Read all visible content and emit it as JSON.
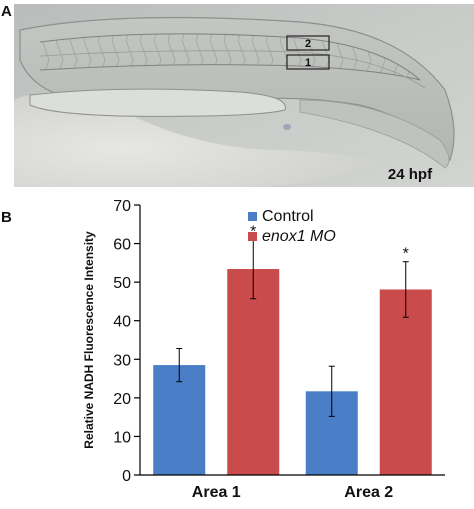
{
  "panel_a": {
    "label": "A",
    "timepoint": "24 hpf",
    "boxes": [
      "2",
      "1"
    ]
  },
  "panel_b": {
    "label": "B"
  },
  "chart_data": {
    "type": "bar",
    "categories": [
      "Area 1",
      "Area 2"
    ],
    "series": [
      {
        "name": "Control",
        "values": [
          28.5,
          21.7
        ],
        "errors": [
          4.3,
          6.5
        ],
        "color": "#4a7fc8",
        "significant": [
          false,
          false
        ]
      },
      {
        "name": "enox1 MO",
        "values": [
          53.4,
          48.1
        ],
        "errors": [
          7.7,
          7.2
        ],
        "color": "#c94b4b",
        "significant": [
          true,
          true
        ]
      }
    ],
    "significance_marker": "*",
    "ylabel": "Relative NADH Fluorescence Intensity",
    "ylim": [
      0,
      70
    ],
    "yticks": [
      "0",
      "10",
      "20",
      "30",
      "40",
      "50",
      "60",
      "70"
    ],
    "grid": false,
    "legend_position": "top"
  }
}
